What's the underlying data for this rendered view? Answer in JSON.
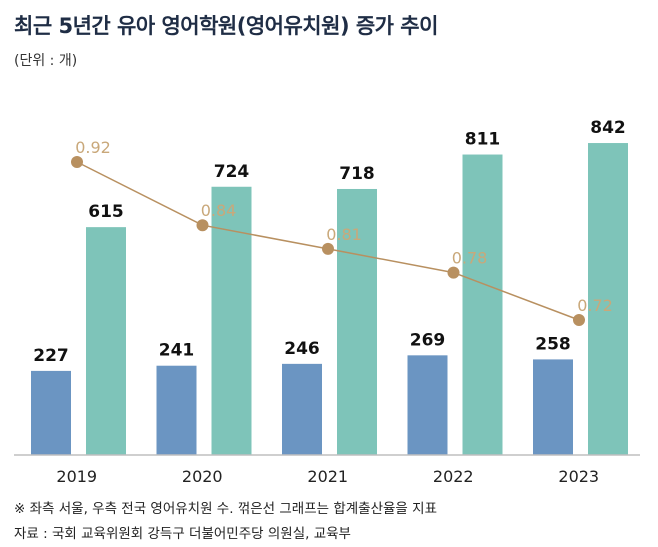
{
  "title": "최근 5년간 유아 영어학원(영어유치원) 증가 추이",
  "unit": "(단위 : 개)",
  "note": "※ 좌측 서울, 우측 전국 영어유치원 수. 꺾은선 그래프는 합계출산율을 지표",
  "source": "자료 : 국회 교육위원회 강득구 더불어민주당 의원실, 교육부",
  "chart_data": {
    "type": "bar",
    "categories": [
      "2019",
      "2020",
      "2021",
      "2022",
      "2023"
    ],
    "series": [
      {
        "values": [
          227,
          241,
          246,
          269,
          258
        ],
        "color": "#6b95c2"
      },
      {
        "values": [
          615,
          724,
          718,
          811,
          842
        ],
        "color": "#7ec4b9"
      }
    ],
    "line": {
      "values": [
        0.92,
        0.84,
        0.81,
        0.78,
        0.72
      ],
      "labels": [
        "0.92",
        "0.84",
        "0.81",
        "0.78",
        "0.72"
      ],
      "color": "#b89060"
    },
    "ylim": [
      0,
      1000
    ],
    "legend": "none",
    "grid": false
  }
}
